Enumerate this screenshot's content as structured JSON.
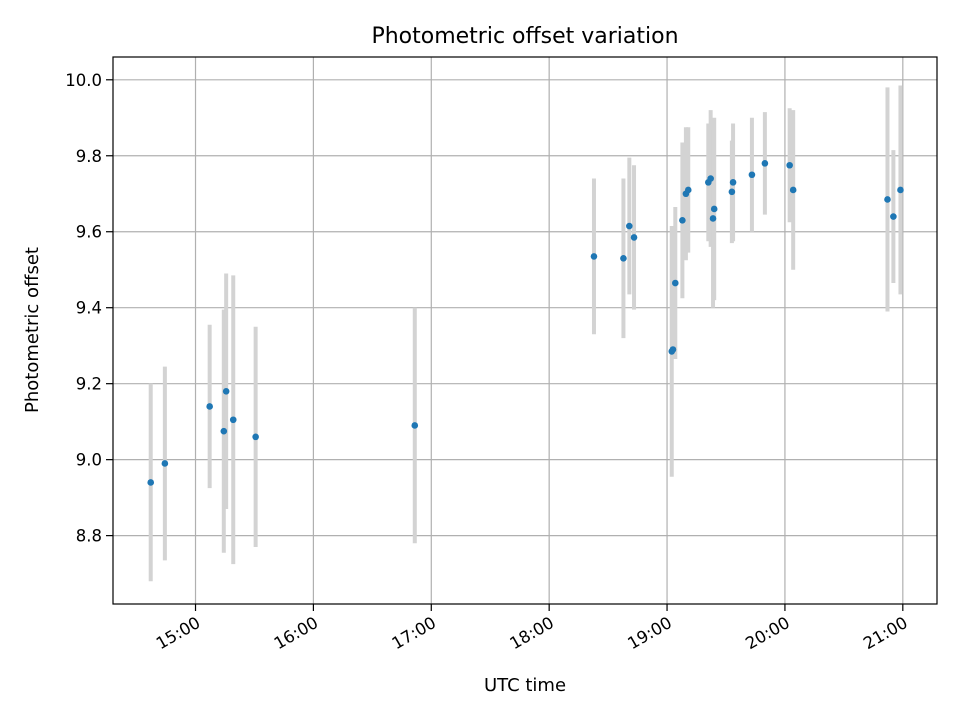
{
  "chart_data": {
    "type": "scatter",
    "title": "Photometric offset variation",
    "xlabel": "UTC time",
    "ylabel": "Photometric offset",
    "x_tick_labels": [
      "15:00",
      "16:00",
      "17:00",
      "18:00",
      "19:00",
      "20:00",
      "21:00"
    ],
    "x_tick_values_hours": [
      15,
      16,
      17,
      18,
      19,
      20,
      21
    ],
    "y_tick_labels": [
      "8.8",
      "9.0",
      "9.2",
      "9.4",
      "9.6",
      "9.8",
      "10.0"
    ],
    "y_tick_values": [
      8.8,
      9.0,
      9.2,
      9.4,
      9.6,
      9.8,
      10.0
    ],
    "xlim_hours": [
      14.3,
      21.29
    ],
    "ylim": [
      8.62,
      10.06
    ],
    "grid": true,
    "point_color": "#1f77b4",
    "errorbar_color": "#d3d3d3",
    "points": [
      {
        "x": 14.62,
        "y": 8.94,
        "yerr": 0.26
      },
      {
        "x": 14.74,
        "y": 8.99,
        "yerr": 0.255
      },
      {
        "x": 15.12,
        "y": 9.14,
        "yerr": 0.215
      },
      {
        "x": 15.24,
        "y": 9.075,
        "yerr": 0.32
      },
      {
        "x": 15.26,
        "y": 9.18,
        "yerr": 0.31
      },
      {
        "x": 15.32,
        "y": 9.105,
        "yerr": 0.38
      },
      {
        "x": 15.51,
        "y": 9.06,
        "yerr": 0.29
      },
      {
        "x": 16.86,
        "y": 9.09,
        "yerr": 0.31
      },
      {
        "x": 18.38,
        "y": 9.535,
        "yerr": 0.205
      },
      {
        "x": 18.63,
        "y": 9.53,
        "yerr": 0.21
      },
      {
        "x": 18.68,
        "y": 9.615,
        "yerr": 0.18
      },
      {
        "x": 18.72,
        "y": 9.585,
        "yerr": 0.19
      },
      {
        "x": 19.04,
        "y": 9.285,
        "yerr": 0.33
      },
      {
        "x": 19.05,
        "y": 9.29,
        "yerr": 0.02
      },
      {
        "x": 19.07,
        "y": 9.465,
        "yerr": 0.2
      },
      {
        "x": 19.13,
        "y": 9.63,
        "yerr": 0.205
      },
      {
        "x": 19.16,
        "y": 9.7,
        "yerr": 0.175
      },
      {
        "x": 19.18,
        "y": 9.71,
        "yerr": 0.165
      },
      {
        "x": 19.35,
        "y": 9.73,
        "yerr": 0.155
      },
      {
        "x": 19.37,
        "y": 9.74,
        "yerr": 0.18
      },
      {
        "x": 19.39,
        "y": 9.635,
        "yerr": 0.235
      },
      {
        "x": 19.4,
        "y": 9.66,
        "yerr": 0.24
      },
      {
        "x": 19.55,
        "y": 9.705,
        "yerr": 0.135
      },
      {
        "x": 19.56,
        "y": 9.73,
        "yerr": 0.155
      },
      {
        "x": 19.72,
        "y": 9.75,
        "yerr": 0.15
      },
      {
        "x": 19.83,
        "y": 9.78,
        "yerr": 0.135
      },
      {
        "x": 20.04,
        "y": 9.775,
        "yerr": 0.15
      },
      {
        "x": 20.07,
        "y": 9.71,
        "yerr": 0.21
      },
      {
        "x": 20.87,
        "y": 9.685,
        "yerr": 0.295
      },
      {
        "x": 20.92,
        "y": 9.64,
        "yerr": 0.175
      },
      {
        "x": 20.98,
        "y": 9.71,
        "yerr": 0.275
      }
    ]
  }
}
